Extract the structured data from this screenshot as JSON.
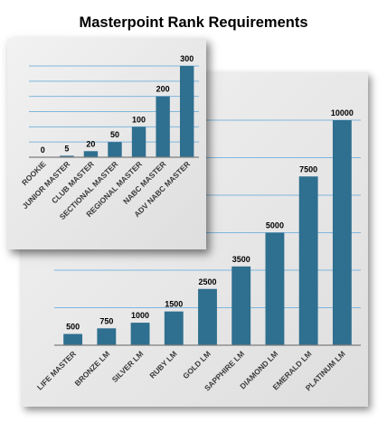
{
  "title": "Masterpoint Rank Requirements",
  "colors": {
    "bar": "#2f6f8f",
    "grid": "#7fb6dd",
    "panel": "#e8e8e8"
  },
  "chart_data": [
    {
      "type": "bar",
      "title": "",
      "categories": [
        "ROOKIE",
        "JUNIOR MASTER",
        "CLUB MASTER",
        "SECTIONAL MASTER",
        "REGIONAL MASTER",
        "NABC MASTER",
        "ADV NABC MASTER"
      ],
      "values": [
        0,
        5,
        20,
        50,
        100,
        200,
        300
      ],
      "value_labels": [
        "0",
        "5",
        "20",
        "50",
        "100",
        "200",
        "300"
      ],
      "ylim": [
        0,
        300
      ],
      "grid": true,
      "legend": "none"
    },
    {
      "type": "bar",
      "title": "",
      "categories": [
        "LIFE MASTER",
        "BRONZE LM",
        "SILVER LM",
        "RUBY LM",
        "GOLD LM",
        "SAPPHIRE LM",
        "DIAMOND LM",
        "EMERALD LM",
        "PLATINUM LM"
      ],
      "values": [
        500,
        750,
        1000,
        1500,
        2500,
        3500,
        5000,
        7500,
        10000
      ],
      "value_labels": [
        "500",
        "750",
        "1000",
        "1500",
        "2500",
        "3500",
        "5000",
        "7500",
        "10000"
      ],
      "ylim": [
        0,
        10000
      ],
      "grid": true,
      "legend": "none"
    }
  ]
}
